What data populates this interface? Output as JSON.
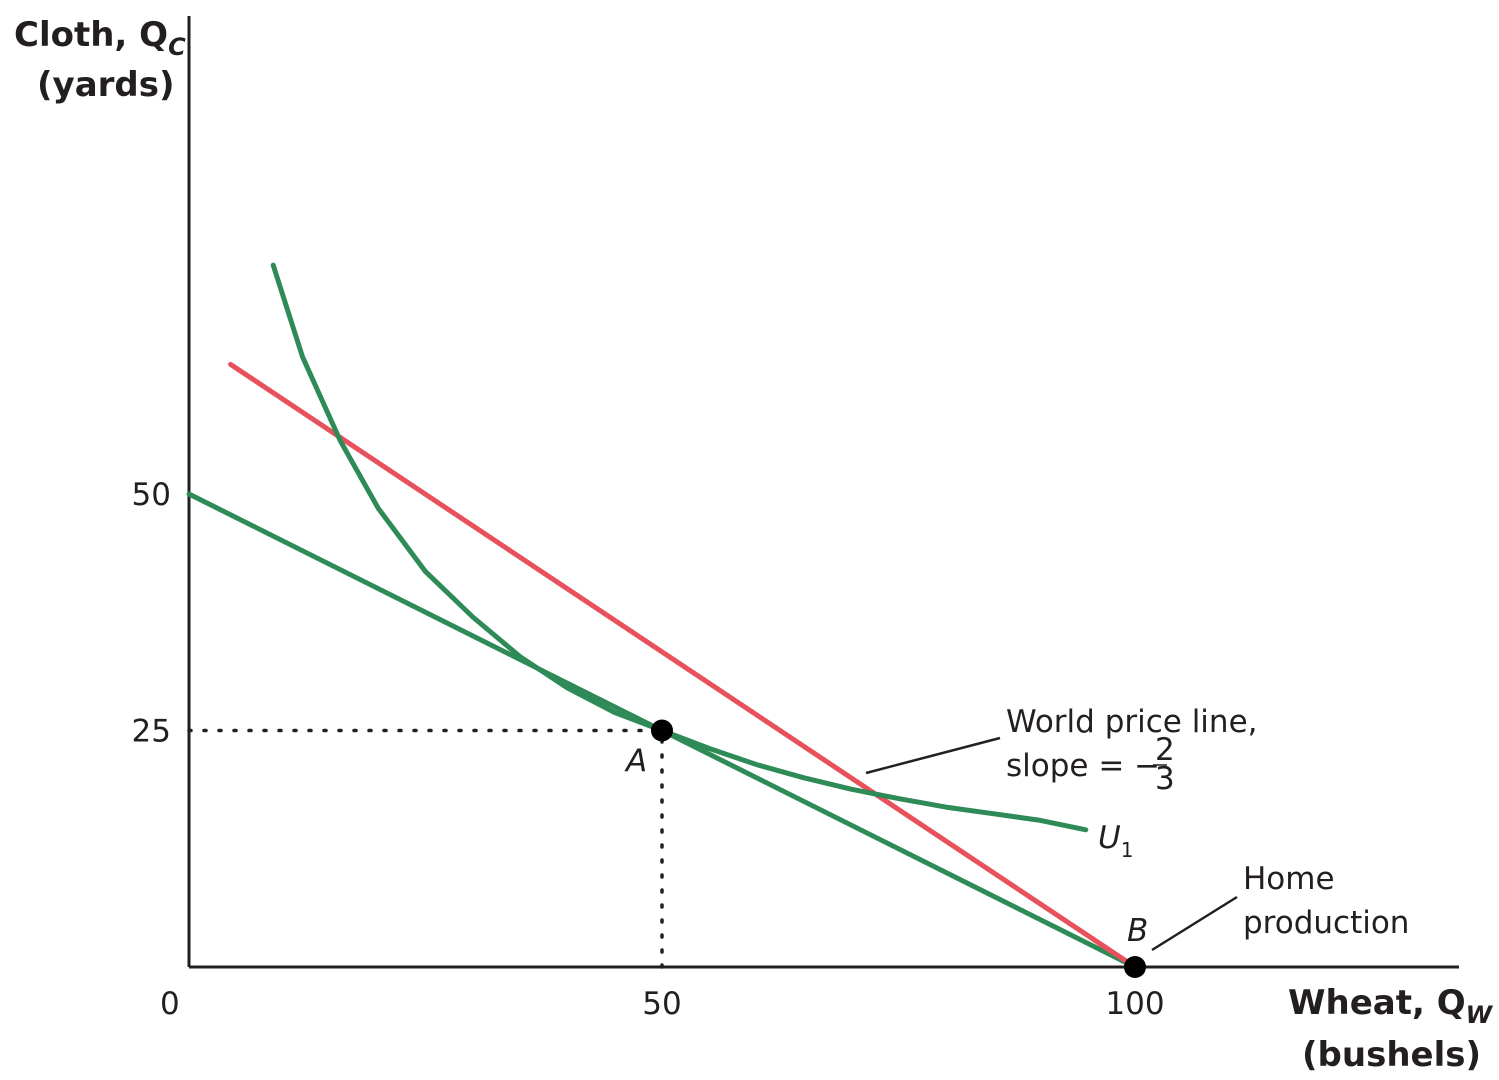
{
  "chart_data": {
    "type": "line",
    "title": "",
    "xlabel": "Wheat, Q",
    "xlabel_sub": "W",
    "xlabel_units": "(bushels)",
    "ylabel": "Cloth, Q",
    "ylabel_sub": "C",
    "ylabel_units": "(yards)",
    "xlim": [
      0,
      134
    ],
    "ylim": [
      0,
      101
    ],
    "origin_label": "0",
    "x_ticks": [
      {
        "value": 50,
        "label": "50"
      },
      {
        "value": 100,
        "label": "100"
      }
    ],
    "y_ticks": [
      {
        "value": 25,
        "label": "25"
      },
      {
        "value": 50,
        "label": "50"
      }
    ],
    "grid": false,
    "legend": "none",
    "colors": {
      "green": "#2e8b57",
      "red": "#e8505b",
      "axis": "#231f20"
    },
    "series": [
      {
        "label": "",
        "color": "green",
        "x": [
          0,
          100
        ],
        "y": [
          50,
          0
        ]
      },
      {
        "label": "World price line, slope = −2/3",
        "color": "red",
        "x": [
          4.4,
          100
        ],
        "y": [
          63.7,
          0
        ]
      },
      {
        "label": "U1",
        "color": "green",
        "x": [
          8.9,
          12,
          16,
          20,
          25,
          30,
          35,
          40,
          45,
          50,
          55,
          60,
          65,
          70,
          75,
          80,
          85,
          90,
          94.8
        ],
        "y": [
          74.2,
          64.5,
          55.6,
          48.5,
          41.8,
          37.0,
          32.8,
          29.5,
          26.9,
          25.0,
          23.1,
          21.4,
          20.0,
          18.8,
          17.8,
          16.9,
          16.2,
          15.5,
          14.5
        ]
      }
    ],
    "points": [
      {
        "label": "A",
        "x": 50,
        "y": 25
      },
      {
        "label": "B",
        "x": 100,
        "y": 0
      }
    ],
    "dashed_guides": [
      {
        "from": [
          0,
          25
        ],
        "to": [
          50,
          25
        ]
      },
      {
        "from": [
          50,
          0
        ],
        "to": [
          50,
          25
        ]
      }
    ],
    "annotations": {
      "world_price_line_1": "World price line,",
      "world_price_line_2": "slope = −",
      "slope_num": "2",
      "slope_den": "3",
      "u1_main": "U",
      "u1_sub": "1",
      "home_production_1": "Home",
      "home_production_2": "production"
    }
  }
}
